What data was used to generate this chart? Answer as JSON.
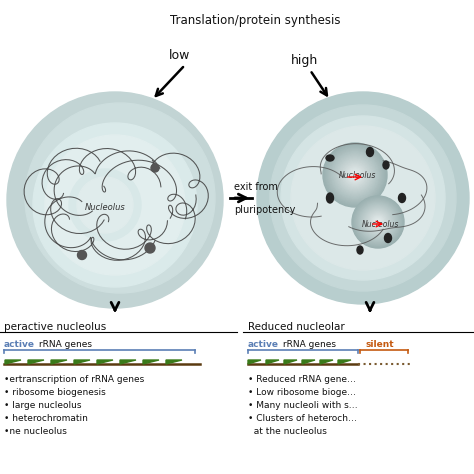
{
  "title": "Translation/protein synthesis",
  "low_text": "low",
  "high_text": "high",
  "left_nucleolus_label": "Nucleolus",
  "right_nucleolus_labels": [
    "Nucleolus",
    "Nucleolus"
  ],
  "exit_text": [
    "exit from",
    "pluripotency"
  ],
  "left_section_label": "peractive nucleolus",
  "right_section_label": "Reduced nucleolar",
  "active_color": "#5b7fb5",
  "silent_color": "#c55a11",
  "green_color": "#3a7a1a",
  "bg_color": "#ffffff",
  "cell_outer_color": "#b8cece",
  "cell_outer_color2": "#c0d0d0",
  "nucleus_color": "#d4e4e4",
  "nucleus_color2": "#dce8e8",
  "nucleolus_left_color": "#c8d8d8",
  "nucleolus_right_color": "#c8d4d4",
  "heterochromatin_color": "#2a2a2a",
  "dark_line_color": "#444444",
  "left_bullets": [
    "•ertranscription of rRNA genes",
    "• ribosome biogenesis",
    "• large nucleolus",
    "• heterochromatin",
    "•ne nucleolus"
  ],
  "right_bullets": [
    "• Reduced rRNA gene...",
    "• Low ribosome bioge...",
    "• Many nucleoli with s...",
    "• Clusters of heteroch...",
    "  at the nucleolus"
  ]
}
